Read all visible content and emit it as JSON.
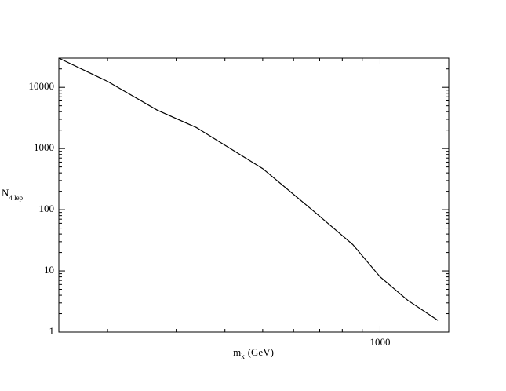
{
  "chart_data": {
    "type": "line",
    "xlabel": {
      "main": "m",
      "sub": "k",
      "unit": "(GeV)"
    },
    "ylabel": {
      "main": "N",
      "sub": "4 lep"
    },
    "x": [
      150,
      200,
      268,
      338,
      500,
      675,
      851,
      1000,
      1178,
      1407
    ],
    "series": [
      {
        "color": "#000000",
        "values": [
          30000,
          12500,
          4250,
          2200,
          470,
          95,
          27,
          8,
          3.3,
          1.55
        ]
      }
    ],
    "xlog": true,
    "ylog": true,
    "xlim": [
      150,
      1500
    ],
    "ylim": [
      1,
      30000
    ],
    "xticks": [
      1000
    ],
    "xminorticks": [
      200,
      300,
      400,
      500,
      600,
      700,
      800,
      900
    ],
    "yticks": [
      1,
      10,
      100,
      1000,
      10000
    ],
    "yminorticks": [
      2,
      3,
      4,
      5,
      6,
      7,
      8,
      9,
      20,
      30,
      40,
      50,
      60,
      70,
      80,
      90,
      200,
      300,
      400,
      500,
      600,
      700,
      800,
      900,
      2000,
      3000,
      4000,
      5000,
      6000,
      7000,
      8000,
      9000,
      20000
    ]
  }
}
